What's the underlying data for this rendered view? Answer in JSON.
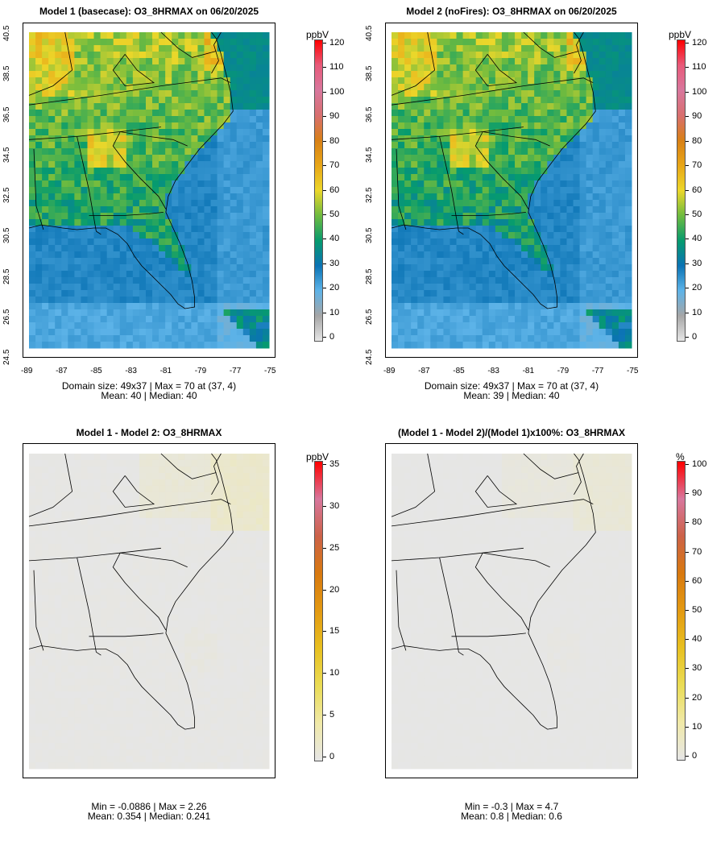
{
  "panels": [
    {
      "id": "model1",
      "title": "Model 1 (basecase): O3_8HRMAX on 06/20/2025",
      "stat_line1": "Domain size: 49x37 | Max = 70 at (37, 4)",
      "stat_line2": "Mean: 40 |  Median: 40",
      "unit": "ppbV",
      "colorbar_ticks": [
        "0",
        "10",
        "20",
        "30",
        "40",
        "50",
        "60",
        "70",
        "80",
        "90",
        "100",
        "110",
        "120"
      ],
      "field": "conc",
      "x_ticks": [
        "-89",
        "-87",
        "-85",
        "-83",
        "-81",
        "-79",
        "-77",
        "-75"
      ],
      "y_ticks": [
        "24.5",
        "26.5",
        "28.5",
        "30.5",
        "32.5",
        "34.5",
        "36.5",
        "38.5",
        "40.5"
      ]
    },
    {
      "id": "model2",
      "title": "Model 2 (noFires): O3_8HRMAX on 06/20/2025",
      "stat_line1": "Domain size: 49x37 | Max = 70 at (37, 4)",
      "stat_line2": "Mean: 39 |  Median: 40",
      "unit": "ppbV",
      "colorbar_ticks": [
        "0",
        "10",
        "20",
        "30",
        "40",
        "50",
        "60",
        "70",
        "80",
        "90",
        "100",
        "110",
        "120"
      ],
      "field": "conc",
      "x_ticks": [
        "-89",
        "-87",
        "-85",
        "-83",
        "-81",
        "-79",
        "-77",
        "-75"
      ],
      "y_ticks": [
        "24.5",
        "26.5",
        "28.5",
        "30.5",
        "32.5",
        "34.5",
        "36.5",
        "38.5",
        "40.5"
      ]
    },
    {
      "id": "diff",
      "title": "Model 1 - Model 2: O3_8HRMAX",
      "stat_line1": "Min = -0.0886 | Max = 2.26",
      "stat_line2": "Mean: 0.354 |  Median: 0.241",
      "unit": "ppbV",
      "colorbar_ticks": [
        "0",
        "5",
        "10",
        "15",
        "20",
        "25",
        "30",
        "35"
      ],
      "field": "diff"
    },
    {
      "id": "pctdiff",
      "title": "(Model 1 - Model 2)/(Model 1)x100%: O3_8HRMAX",
      "stat_line1": "Min = -0.3 | Max = 4.7",
      "stat_line2": "Mean: 0.8 |  Median: 0.6",
      "unit": "%",
      "colorbar_ticks": [
        "0",
        "10",
        "20",
        "30",
        "40",
        "50",
        "60",
        "70",
        "80",
        "90",
        "100"
      ],
      "field": "diff"
    }
  ],
  "colors": {
    "conc_scale": [
      "#e6e6e6",
      "#a6a6a6",
      "#5db3e8",
      "#0a73b4",
      "#069b6e",
      "#6fbb3f",
      "#ecd72a",
      "#e8a617",
      "#d88016",
      "#d86f6f",
      "#d8779d",
      "#e85a7a",
      "#ff0000"
    ],
    "diff_scale": [
      "#e6e6e6",
      "#f0e9a8",
      "#eadc55",
      "#e8c020",
      "#e39a12",
      "#d8790f",
      "#cc6248",
      "#d8779d",
      "#ff0000"
    ],
    "ocean_conc": "#67b1e3",
    "land_grey": "#e6e6e6"
  }
}
